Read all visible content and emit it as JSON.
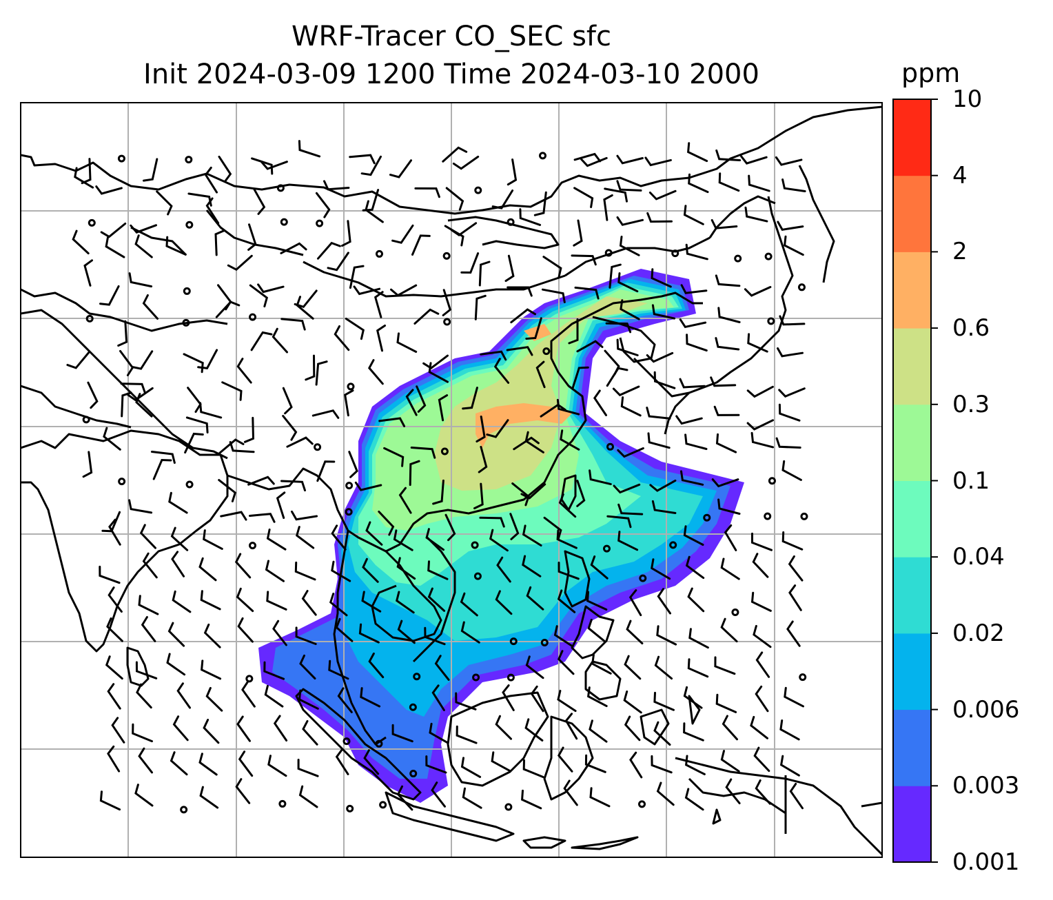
{
  "title_line1": "WRF-Tracer CO_SEC sfc",
  "title_line2": "Init 2024-03-09 1200 Time 2024-03-10 2000",
  "colorbar": {
    "units": "ppm",
    "levels": [
      "0.001",
      "0.003",
      "0.006",
      "0.02",
      "0.04",
      "0.1",
      "0.3",
      "0.6",
      "2",
      "4",
      "10"
    ],
    "colors": [
      "#6629ff",
      "#3676f4",
      "#04b3ed",
      "#2fdcd3",
      "#6dfbbd",
      "#9df996",
      "#cde186",
      "#ffb063",
      "#ff753c",
      "#ff2a15"
    ]
  },
  "map": {
    "background": "#ffffff",
    "gridline_color": "#b0b0b0",
    "coastline_color": "#000000",
    "overlay": "wind-barbs"
  }
}
